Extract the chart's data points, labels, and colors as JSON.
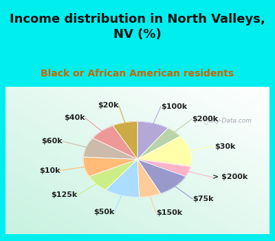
{
  "title": "Income distribution in North Valleys,\nNV (%)",
  "subtitle": "Black or African American residents",
  "title_fontsize": 13,
  "subtitle_fontsize": 10,
  "title_color": "#111111",
  "subtitle_color": "#cc6600",
  "background_cyan": "#00eeee",
  "watermark": "City-Data.com",
  "labels": [
    "$100k",
    "$200k",
    "$30k",
    "> $200k",
    "$75k",
    "$150k",
    "$50k",
    "$125k",
    "$10k",
    "$60k",
    "$40k",
    "$20k"
  ],
  "values": [
    9.5,
    5.0,
    13.5,
    4.5,
    10.5,
    6.5,
    10.5,
    7.5,
    8.5,
    8.5,
    8.0,
    7.5
  ],
  "colors": [
    "#b3a8d8",
    "#b8d4a8",
    "#ffffaa",
    "#ffb3c8",
    "#9999cc",
    "#ffcc99",
    "#aaddff",
    "#ccee88",
    "#ffbb77",
    "#ccbbaa",
    "#ee9999",
    "#ccaa44"
  ],
  "startangle": 90,
  "label_fontsize": 8,
  "label_color": "#222222"
}
